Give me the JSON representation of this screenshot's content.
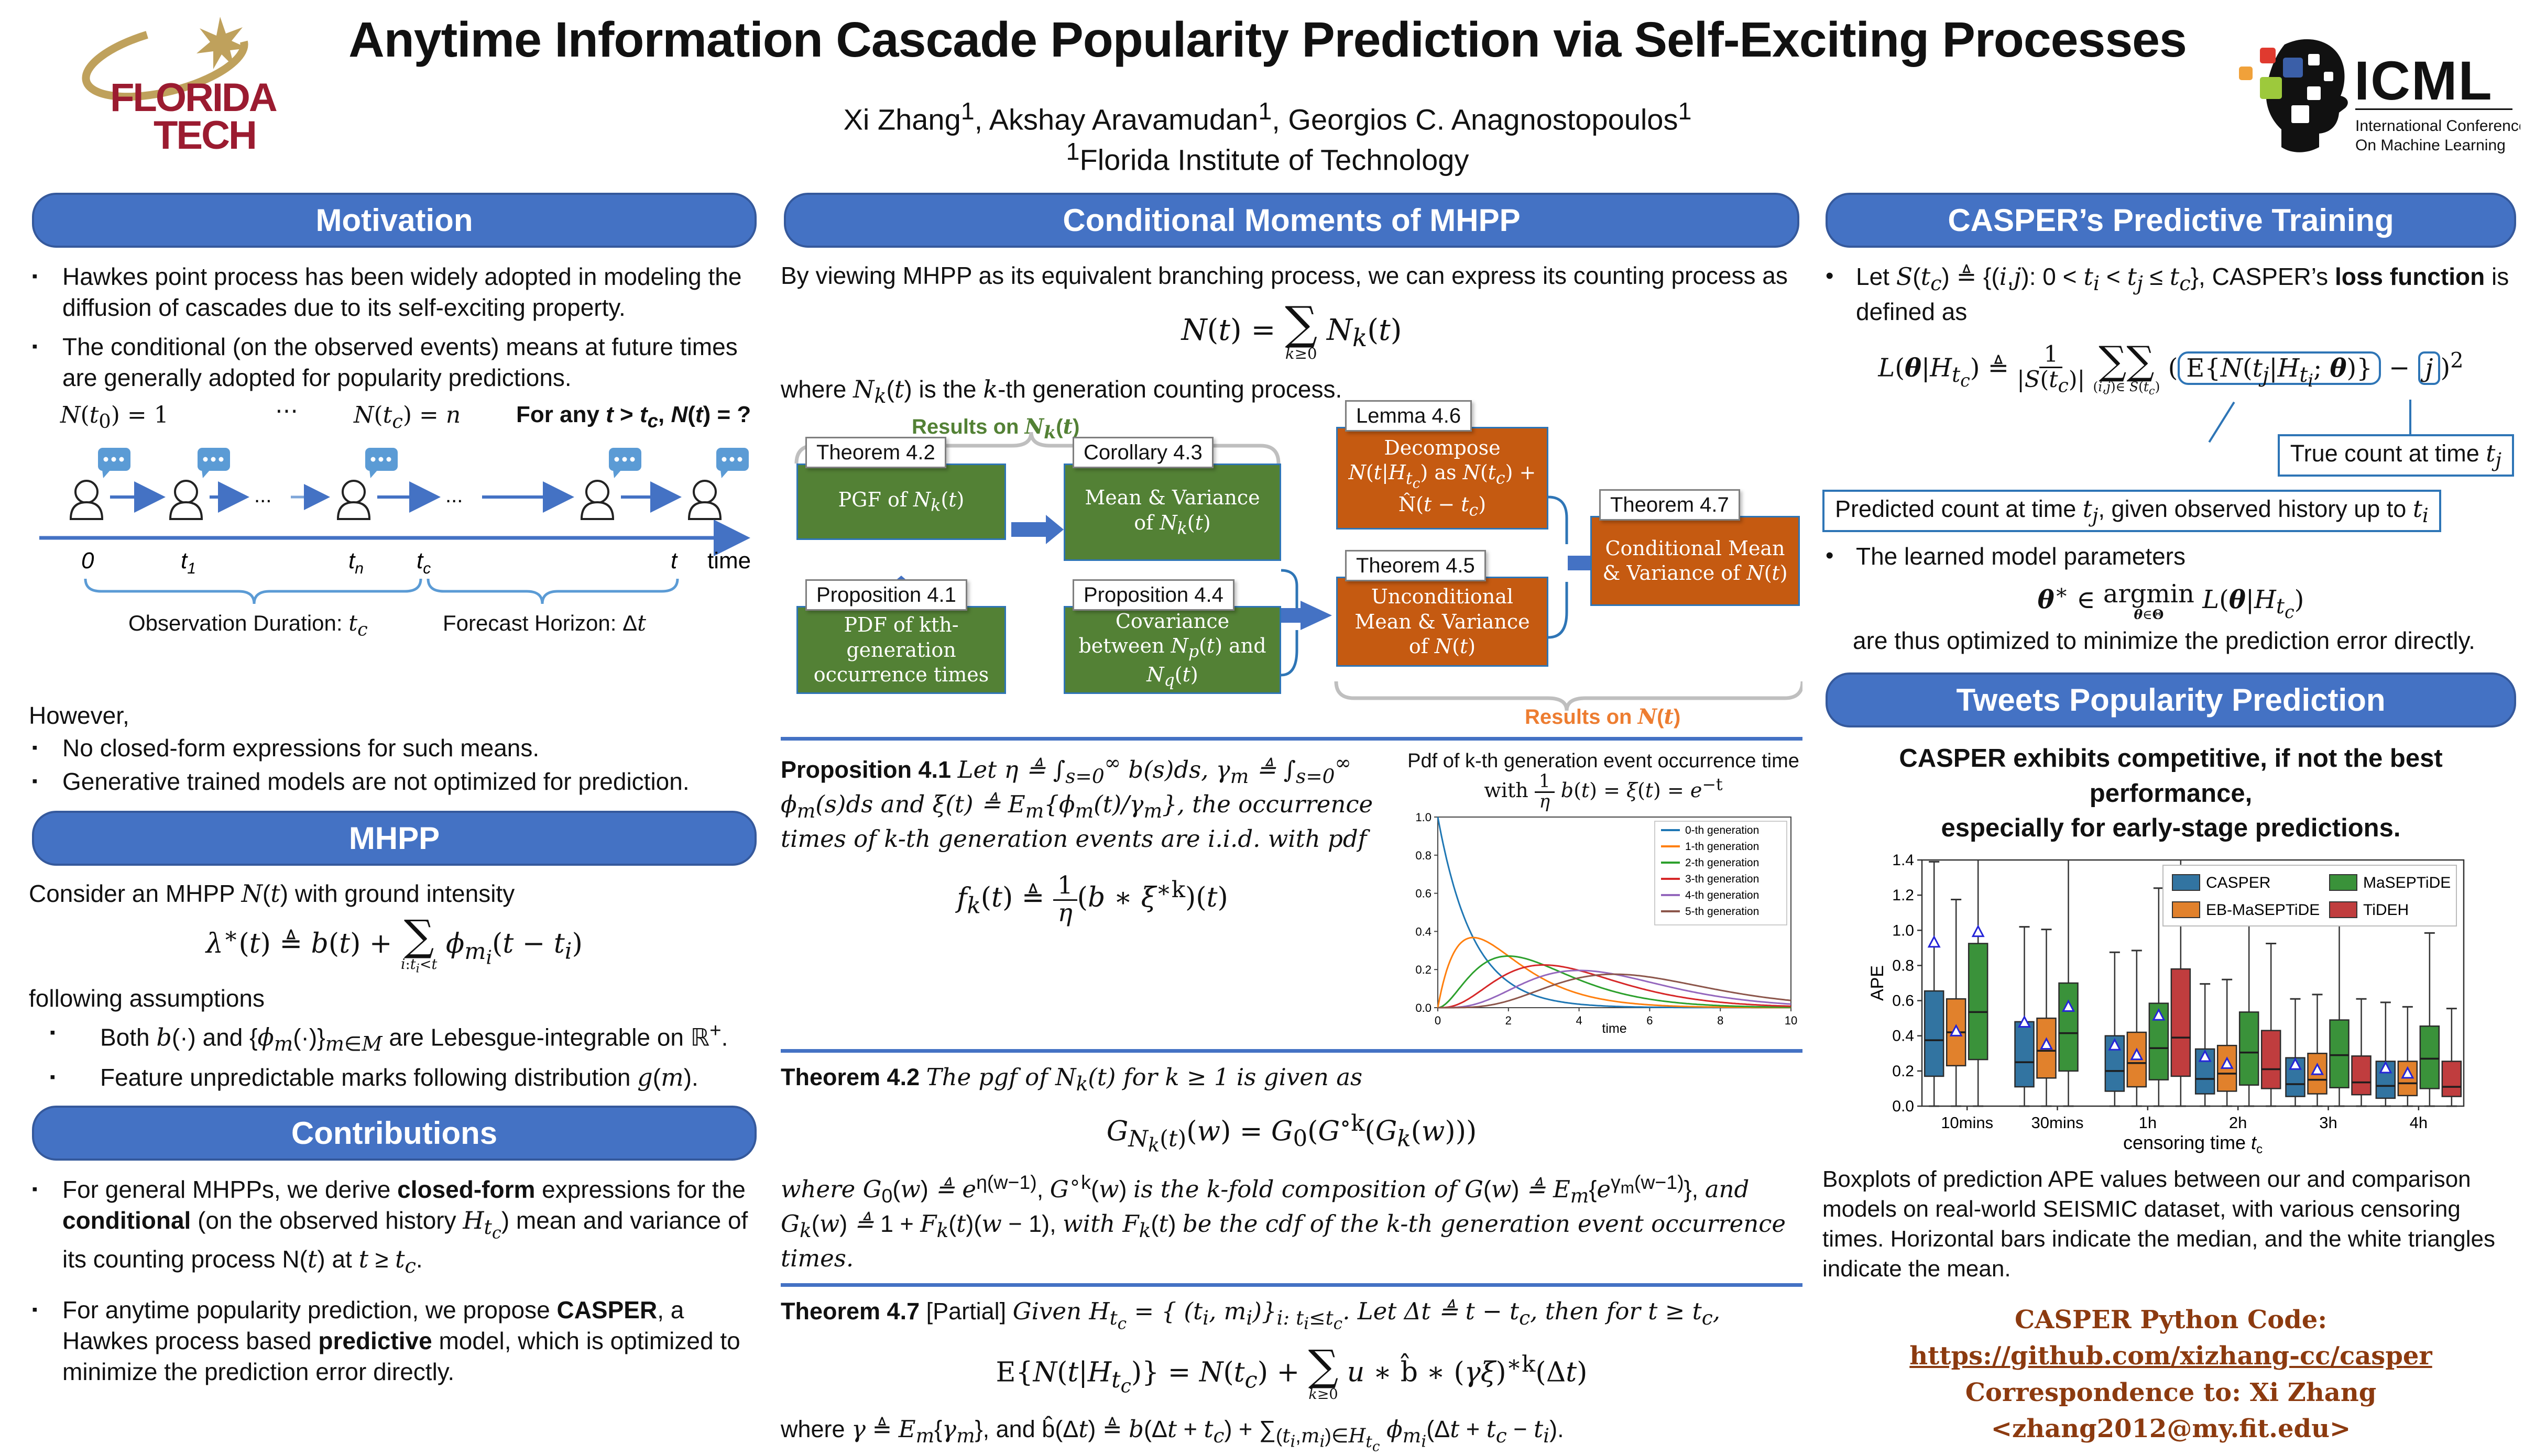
{
  "colors": {
    "section_header_blue": "#4472C4",
    "flow_green": "#538135",
    "flow_orange": "#C55A11",
    "arrow_blue": "#4472C4",
    "brace_gray": "#BFBFBF",
    "callout_blue": "#2E75B6",
    "footer_rust": "#8C3A0F",
    "bubble_blue": "#5B9BD5",
    "ft_crimson": "#9B1B30",
    "ft_gold": "#BFA15C"
  },
  "header": {
    "title": "Anytime Information Cascade Popularity Prediction via Self-Exciting Processes",
    "authors_html": "Xi Zhang<sup>1</sup>,  Akshay Aravamudan<sup>1</sup>, Georgios C. Anagnostopoulos<sup>1</sup>",
    "affiliation_html": "<sup>1</sup>Florida Institute of Technology"
  },
  "logos": {
    "florida_tech": {
      "line1": "FLORIDA",
      "line2": "TECH"
    },
    "icml": {
      "acronym": "ICML",
      "sub_line1": "International Conference",
      "sub_line2": "On Machine Learning"
    }
  },
  "left": {
    "motivation": {
      "title": "Motivation",
      "bullets_html": [
        "Hawkes point process has been widely adopted in modeling the diffusion of cascades due to its self-exciting property.",
        "The conditional (on the observed events) means at future times are generally adopted for popularity predictions."
      ]
    },
    "diagram": {
      "labels_html": [
        "<i>N</i>(<i>t</i><sub>0</sub>) = 1",
        "⋯",
        "<i>N</i>(<i>t<sub>c</sub></i>) = <i>n</i>",
        "<b>For any <i>t</i> &gt; <i>t<sub>c</sub></i>, <i>N</i>(<i>t</i>) = ?</b>"
      ],
      "axis_ticks": [
        {
          "main": "0",
          "sub": ""
        },
        {
          "main": "t",
          "sub": "1"
        },
        {
          "main": "t",
          "sub": "n"
        },
        {
          "main": "t",
          "sub": "c"
        },
        {
          "main": "t",
          "sub": ""
        }
      ],
      "axis_end_label": "time",
      "arrow_dots": "...",
      "obs_label_html": "Observation Duration:  <i class='math'>t<sub>c</sub></i>",
      "forecast_label_html": "Forecast Horizon:  Δ<i class='math'>t</i>"
    },
    "however": {
      "lead": "However,",
      "bullets": [
        "No closed-form expressions for such means.",
        "Generative trained models are not optimized for prediction."
      ]
    },
    "mhpp": {
      "title": "MHPP",
      "intro_html": "Consider an MHPP <i class='math'>N</i>(<i class='math'>t</i>) with ground intensity",
      "formula_html": "<i>λ</i><sup>∗</sup>(<i>t</i>) ≜ <i>b</i>(<i>t</i>) + <span class='bigop'><span class='sum'>∑</span><span class='under'><i>i</i>:<i>t<sub>i</sub></i>&lt;<i>t</i></span></span> <i>ϕ</i><sub><i>m<sub>i</sub></i></sub>(<i>t</i> − <i>t<sub>i</sub></i>)",
      "assumptions_lead": "following assumptions",
      "assumptions_html": [
        "Both <i class='math'>b</i>(·) and {<i class='math'>ϕ<sub>m</sub></i>(·)}<sub><i class='math'>m</i>∈<i class='math'>M</i></sub> are Lebesgue-integrable on ℝ<sup>+</sup>.",
        "Feature unpredictable marks following distribution <i class='math'>g</i>(<i class='math'>m</i>)."
      ]
    },
    "contributions": {
      "title": "Contributions",
      "bullets_html": [
        "For general MHPPs,  we derive <b>closed-form</b> expressions for the <b>conditional</b> (on the observed history  <i class='math'>H</i><sub><i class='math'>t<sub>c</sub></i></sub>) mean and variance of its counting process N(<i class='math'>t</i>) at <i class='math'>t</i> ≥ <i class='math'>t<sub>c</sub></i>.",
        "For anytime popularity prediction, we propose <b>CASPER</b>, a Hawkes process based <b>predictive</b> model, which is optimized to minimize the prediction error directly."
      ]
    }
  },
  "middle": {
    "title": "Conditional Moments of MHPP",
    "intro": "By viewing MHPP as its equivalent branching process, we can express its counting process as",
    "formula_html": "<i>N</i>(<i>t</i>) = <span class='bigop'><span class='sum'>∑</span><span class='under'><i>k</i>≥0</span></span> <i>N<sub>k</sub></i>(<i>t</i>)",
    "where_html": "where <i class='math'>N<sub>k</sub></i>(<i class='math'>t</i>) is the <i class='math'>k</i>-th generation counting process.",
    "flow": {
      "results_nk_html": "Results on <i class='math'>N<sub>k</sub></i>(<i class='math'>t</i>)",
      "results_nt_html": "Results on <i class='math'>N</i>(<i class='math'>t</i>)",
      "boxes": [
        {
          "id": "thm42",
          "tab": "Theorem 4.2",
          "color": "green",
          "body_html": "PGF of <i>N<sub>k</sub></i>(<i>t</i>)"
        },
        {
          "id": "cor43",
          "tab": "Corollary 4.3",
          "color": "green",
          "body_html": "Mean &amp; Variance of <i>N<sub>k</sub></i>(<i>t</i>)"
        },
        {
          "id": "prop41",
          "tab": "Proposition 4.1",
          "color": "green",
          "body_html": "PDF of kth-generation occurrence times"
        },
        {
          "id": "prop44",
          "tab": "Proposition 4.4",
          "color": "green",
          "body_html": "Covariance between <i>N<sub>p</sub></i>(<i>t</i>) and <i>N<sub>q</sub></i>(<i>t</i>)"
        },
        {
          "id": "lem46",
          "tab": "Lemma 4.6",
          "color": "orange",
          "body_html": "Decompose  <i>N</i>(<i>t</i>|<i>H</i><sub><i>t<sub>c</sub></i></sub>) as <i>N</i>(<i>t<sub>c</sub></i>) + N̂(<i>t</i> − <i>t<sub>c</sub></i>)"
        },
        {
          "id": "thm45",
          "tab": "Theorem 4.5",
          "color": "orange",
          "body_html": "Unconditional Mean &amp; Variance of <i>N</i>(<i>t</i>)"
        },
        {
          "id": "thm47",
          "tab": "Theorem 4.7",
          "color": "orange",
          "body_html": "Conditional Mean &amp; Variance of <i>N</i>(<i>t</i>)"
        }
      ]
    },
    "prop41": {
      "text_html": "<b>Proposition 4.1</b> <i>Let η ≜ ∫<sub>s=0</sub><sup>∞</sup> b(s)ds, γ<sub>m</sub> ≜ ∫<sub>s=0</sub><sup>∞</sup> ϕ<sub>m</sub>(s)ds and ξ(t) ≜ E<sub>m</sub>{ϕ<sub>m</sub>(t)∕γ<sub>m</sub>}, the occurrence times of k-th generation events are i.i.d. with pdf</i>",
      "formula_html": "<i>f<sub>k</sub></i>(<i>t</i>) ≜ <span class='frac'><span>1</span><span><i>η</i></span></span>(<i>b</i> ∗ <i>ξ</i><sup>∗k</sup>)(<i>t</i>)"
    },
    "pdf_plot": {
      "title_line1": "Pdf of k-th generation event occurrence time",
      "title_line2_html": "with  <span class='frac'><span>1</span><span><i>η</i></span></span> <i>b</i>(<i>t</i>) = <i>ξ</i>(<i>t</i>) = <i>e</i><sup>−t</sup>"
    },
    "thm42": {
      "text_html": "<b>Theorem 4.2</b> <i>The pgf of N<sub>k</sub>(t) for k ≥ 1 is given as</i>",
      "formula_html": "<i>G</i><sub><i>N<sub>k</sub></i>(<i>t</i>)</sub>(<i>w</i>) =  <i>G</i><sub>0</sub>(<i>G</i><sup>∘k</sup>(<i>G<sub>k</sub></i>(<i>w</i>)))",
      "where_html": "<i>where G</i><sub>0</sub>(<i>w</i>) <i>≜ e</i><sup>η(w−1)</sup>, <i>G</i><sup>∘k</sup>(<i>w</i>)  <i>is the k-fold composition of G</i>(<i>w</i>) <i>≜ E<sub>m</sub></i>{<i>e</i><sup>γ<sub>m</sub>(w−1)</sup>},  <i>and G<sub>k</sub></i>(<i>w</i>) <i>≜</i> 1 + <i>F<sub>k</sub></i>(<i>t</i>)(<i>w</i> − 1), <i>with F<sub>k</sub></i>(<i>t</i>) <i>be the cdf of the k-th generation event occurrence times.</i>"
    },
    "thm47": {
      "text_html": "<b>Theorem 4.7</b> [Partial] <i>Given H<sub>t<sub>c</sub></sub> =  { (t<sub>i</sub>, m<sub>i</sub>)}<sub>i: t<sub>i</sub>≤t<sub>c</sub></sub>. Let Δt ≜ t − t<sub>c</sub>, then for t ≥  t<sub>c</sub>,</i>",
      "formula_html": "E{<i>N</i>(<i>t</i>|<i>H</i><sub><i>t<sub>c</sub></i></sub>)} = <i>N</i>(<i>t<sub>c</sub></i>) + <span class='bigop'><span class='sum'>∑</span><span class='under'><i>k</i>≥0</span></span> <i>u</i> ∗ b̂ ∗ (<i>γξ</i>)<sup>∗k</sup>(Δ<i>t</i>)",
      "where_html": "where <i>γ</i> ≜ <i>E<sub>m</sub></i>{<i>γ<sub>m</sub></i>}, and  b̂(Δ<i>t</i>) ≜ <i>b</i>(Δ<i>t</i> + <i>t<sub>c</sub></i>)  + ∑<sub>(<i>t<sub>i</sub></i>,<i>m<sub>i</sub></i>)∈<i>H</i><sub><i>t<sub>c</sub></i></sub></sub> <i>ϕ</i><sub><i>m<sub>i</sub></i></sub>(Δ<i>t</i> + <i>t<sub>c</sub></i> − <i>t<sub>i</sub></i>)."
    }
  },
  "right": {
    "training": {
      "title": "CASPER’s Predictive Training",
      "bullet1_html": "Let  <i class='math'>S</i>(<i class='math'>t<sub>c</sub></i>) ≜ {(<i class='math'>i</i>,<i class='math'>j</i>): 0 &lt; <i class='math'>t<sub>i</sub></i> &lt; <i class='math'>t<sub>j</sub></i> ≤ <i class='math'>t<sub>c</sub></i>}, CASPER’s <b>loss function</b> is defined as",
      "loss_formula_html": "<i>L</i>(<b><i>θ</i></b>|<i>H</i><sub><i>t<sub>c</sub></i></sub>) ≜ <span class='frac'><span>1</span><span>|<i>S</i>(<i>t<sub>c</sub></i>)|</span></span> <span class='bigop'><span class='sum'>∑∑</span><span class='under'>(<i>i</i>,<i>j</i>)∈ <i>S</i>(<i>t<sub>c</sub></i>)</span></span> (<span class='hl-box'>E{<i>N</i>(<i>t<sub>j</sub></i>|<i>H</i><sub><i>t<sub>i</sub></i></sub>; <b><i>θ</i></b>)}</span> − <span class='hl-box hl-j'><i>j</i></span>)<sup>2</sup>",
      "callout_true_html": "True count at time <i class='math'>t<sub>j</sub></i>",
      "callout_pred_html": "Predicted count at time <i class='math'>t<sub>j</sub></i>, given observed history up to <i class='math'>t<sub>i</sub></i>",
      "bullet2": "The learned model parameters",
      "argmin_html": "<b><i>θ</i></b><sup>∗</sup> ∈ <span class='bigop'><span>argmin</span><span class='under'><b><i>θ</i></b>∈<b>Θ</b></span></span> <i>L</i>(<b><i>θ</i></b>|<i>H</i><sub><i>t<sub>c</sub></i></sub>)",
      "closing": "are thus optimized to minimize the prediction error directly."
    },
    "tweets": {
      "title": "Tweets Popularity Prediction",
      "statement_html": "CASPER exhibits competitive, if not the best performance,<br>especially for early-stage predictions.",
      "caption": "Boxplots of prediction APE values between our and comparison models on real-world SEISMIC dataset, with various censoring times. Horizontal bars indicate the median, and the white triangles indicate the mean."
    },
    "footer": {
      "code_label": "CASPER Python Code: ",
      "code_url": "https://github.com/xizhang-cc/casper",
      "correspondence_html": "Correspondence to: Xi Zhang &lt;zhang2012@my.fit.edu&gt;"
    }
  },
  "chart_data": [
    {
      "type": "line",
      "title": "Pdf of k-th generation event occurrence time with (1/η)b(t) = ξ(t) = e⁻ᵗ",
      "xlabel": "time",
      "ylabel": "",
      "xlim": [
        0,
        10
      ],
      "ylim": [
        0.0,
        1.0
      ],
      "xticks": [
        0,
        2,
        4,
        6,
        8,
        10
      ],
      "yticks": [
        0.0,
        0.2,
        0.4,
        0.6,
        0.8,
        1.0
      ],
      "grid": false,
      "legend_position": "upper right",
      "curve_family": "Erlang pdf f_k(t) = t^k e^(-t) / k!",
      "series": [
        {
          "name": "0-th generation",
          "color": "#1f77b4",
          "k": 0,
          "peak_x": 0,
          "peak_y": 1.0
        },
        {
          "name": "1-th generation",
          "color": "#ff7f0e",
          "k": 1,
          "peak_x": 1,
          "peak_y": 0.37
        },
        {
          "name": "2-th generation",
          "color": "#2ca02c",
          "k": 2,
          "peak_x": 2,
          "peak_y": 0.27
        },
        {
          "name": "3-th generation",
          "color": "#d62728",
          "k": 3,
          "peak_x": 3,
          "peak_y": 0.22
        },
        {
          "name": "4-th generation",
          "color": "#9467bd",
          "k": 4,
          "peak_x": 4,
          "peak_y": 0.2
        },
        {
          "name": "5-th generation",
          "color": "#8c564b",
          "k": 5,
          "peak_x": 5,
          "peak_y": 0.18
        }
      ]
    },
    {
      "type": "boxplot",
      "xlabel": "censoring time t_c",
      "xlabel_parts": {
        "pre": "censoring time ",
        "var": "t",
        "sub": "c"
      },
      "ylabel": "APE",
      "ylim": [
        0.0,
        1.4
      ],
      "yticks": [
        0.0,
        0.2,
        0.4,
        0.6,
        0.8,
        1.0,
        1.2,
        1.4
      ],
      "categories": [
        "10mins",
        "30mins",
        "1h",
        "2h",
        "3h",
        "4h"
      ],
      "legend_columns": 2,
      "note": "TiDEH boxes at 10mins and 30mins lie above the visible axis range (clipped); whiskers marked clipped extend beyond ylim 1.4.",
      "series": [
        {
          "name": "CASPER",
          "color": "#3274a1",
          "boxes": [
            {
              "whislo": 0.0,
              "q1": 0.17,
              "med": 0.375,
              "q3": 0.655,
              "whishi": 1.39,
              "clipped": false,
              "mean": 0.93
            },
            {
              "whislo": 0.0,
              "q1": 0.11,
              "med": 0.25,
              "q3": 0.48,
              "whishi": 1.02,
              "clipped": false,
              "mean": 0.475
            },
            {
              "whislo": 0.0,
              "q1": 0.085,
              "med": 0.2,
              "q3": 0.4,
              "whishi": 0.875,
              "clipped": false,
              "mean": 0.345
            },
            {
              "whislo": 0.0,
              "q1": 0.07,
              "med": 0.155,
              "q3": 0.325,
              "whishi": 0.695,
              "clipped": false,
              "mean": 0.28
            },
            {
              "whislo": 0.0,
              "q1": 0.055,
              "med": 0.125,
              "q3": 0.275,
              "whishi": 0.61,
              "clipped": false,
              "mean": 0.235
            },
            {
              "whislo": 0.0,
              "q1": 0.045,
              "med": 0.115,
              "q3": 0.255,
              "whishi": 0.59,
              "clipped": false,
              "mean": 0.215
            }
          ]
        },
        {
          "name": "EB-MaSEPTiDE",
          "color": "#e1812c",
          "boxes": [
            {
              "whislo": 0.0,
              "q1": 0.23,
              "med": 0.42,
              "q3": 0.61,
              "whishi": 1.175,
              "clipped": false,
              "mean": 0.425
            },
            {
              "whislo": 0.0,
              "q1": 0.16,
              "med": 0.315,
              "q3": 0.5,
              "whishi": 1.005,
              "clipped": false,
              "mean": 0.35
            },
            {
              "whislo": 0.0,
              "q1": 0.11,
              "med": 0.245,
              "q3": 0.42,
              "whishi": 0.885,
              "clipped": false,
              "mean": 0.29
            },
            {
              "whislo": 0.0,
              "q1": 0.085,
              "med": 0.185,
              "q3": 0.345,
              "whishi": 0.72,
              "clipped": false,
              "mean": 0.24
            },
            {
              "whislo": 0.0,
              "q1": 0.07,
              "med": 0.15,
              "q3": 0.3,
              "whishi": 0.635,
              "clipped": false,
              "mean": 0.205
            },
            {
              "whislo": 0.0,
              "q1": 0.06,
              "med": 0.13,
              "q3": 0.255,
              "whishi": 0.565,
              "clipped": false,
              "mean": 0.185
            }
          ]
        },
        {
          "name": "MaSEPTiDE",
          "color": "#3a923a",
          "boxes": [
            {
              "whislo": 0.0,
              "q1": 0.265,
              "med": 0.535,
              "q3": 0.925,
              "whishi": null,
              "clipped": true,
              "mean": 0.99
            },
            {
              "whislo": 0.0,
              "q1": 0.2,
              "med": 0.415,
              "q3": 0.7,
              "whishi": null,
              "clipped": true,
              "mean": 0.565
            },
            {
              "whislo": 0.0,
              "q1": 0.15,
              "med": 0.33,
              "q3": 0.585,
              "whishi": 1.24,
              "clipped": false,
              "mean": 0.515
            },
            {
              "whislo": 0.0,
              "q1": 0.12,
              "med": 0.305,
              "q3": 0.535,
              "whishi": 1.15,
              "clipped": false,
              "mean": null
            },
            {
              "whislo": 0.0,
              "q1": 0.105,
              "med": 0.29,
              "q3": 0.49,
              "whishi": 1.06,
              "clipped": false,
              "mean": null
            },
            {
              "whislo": 0.0,
              "q1": 0.1,
              "med": 0.27,
              "q3": 0.455,
              "whishi": 0.985,
              "clipped": false,
              "mean": null
            }
          ]
        },
        {
          "name": "TiDEH",
          "color": "#c03d3e",
          "boxes": [
            null,
            null,
            {
              "whislo": 0.0,
              "q1": 0.17,
              "med": 0.39,
              "q3": 0.78,
              "whishi": null,
              "clipped": true,
              "mean": null
            },
            {
              "whislo": 0.0,
              "q1": 0.1,
              "med": 0.21,
              "q3": 0.43,
              "whishi": 0.925,
              "clipped": false,
              "mean": null
            },
            {
              "whislo": 0.0,
              "q1": 0.065,
              "med": 0.135,
              "q3": 0.285,
              "whishi": 0.61,
              "clipped": false,
              "mean": null
            },
            {
              "whislo": 0.0,
              "q1": 0.055,
              "med": 0.11,
              "q3": 0.255,
              "whishi": 0.555,
              "clipped": false,
              "mean": null
            }
          ]
        }
      ]
    }
  ]
}
